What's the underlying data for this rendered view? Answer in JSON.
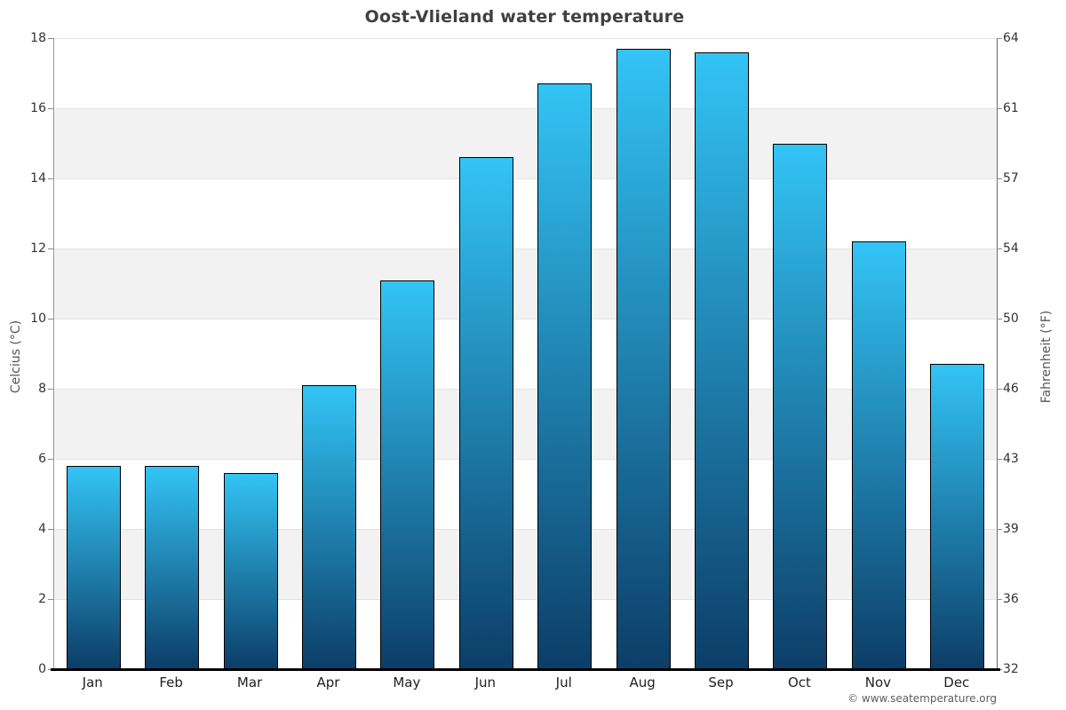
{
  "title": "Oost-Vlieland water temperature",
  "chart_data": {
    "type": "bar",
    "title": "Oost-Vlieland water temperature",
    "categories": [
      "Jan",
      "Feb",
      "Mar",
      "Apr",
      "May",
      "Jun",
      "Jul",
      "Aug",
      "Sep",
      "Oct",
      "Nov",
      "Dec"
    ],
    "values": [
      5.8,
      5.8,
      5.6,
      8.1,
      11.1,
      14.6,
      16.7,
      17.7,
      17.6,
      15.0,
      12.2,
      8.7
    ],
    "ylabel_left": "Celcius (°C)",
    "ylabel_right": "Fahrenheit (°F)",
    "ylim": [
      0,
      18
    ],
    "yticks_celsius": [
      0,
      2,
      4,
      6,
      8,
      10,
      12,
      14,
      16,
      18
    ],
    "yticks_fahrenheit": [
      "32",
      "36",
      "39",
      "43",
      "46",
      "50",
      "54",
      "57",
      "61",
      "64"
    ],
    "grid": "horizontal-bands-alternating",
    "legend": "none",
    "bar_gradient_top": "#33c4f5",
    "bar_gradient_bottom": "#0c3e68",
    "band_gray": "#f2f2f2",
    "gridline_color": "#e3e3e3"
  },
  "footer": {
    "copyright": "© www.seatemperature.org"
  }
}
